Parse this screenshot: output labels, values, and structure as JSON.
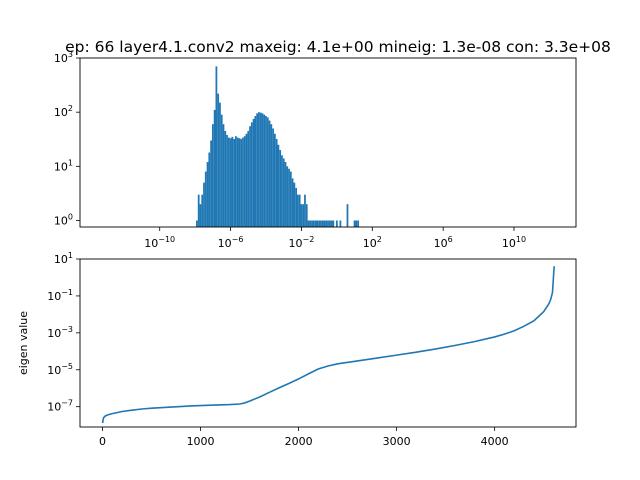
{
  "title": "ep: 66 layer4.1.conv2 maxeig: 4.1e+00 mineig: 1.3e-08 con: 3.3e+08",
  "colors": {
    "series": "#1f77b4",
    "axes": "#000000",
    "background": "#ffffff"
  },
  "chart_data": [
    {
      "type": "bar",
      "subtype": "histogram",
      "xscale": "log",
      "yscale": "log",
      "xlim_log10": [
        -14.5,
        13.5
      ],
      "ylim_log10": [
        -0.12,
        3
      ],
      "xticks": [
        {
          "base": "10",
          "exp": "−10",
          "log10": -10
        },
        {
          "base": "10",
          "exp": "−6",
          "log10": -6
        },
        {
          "base": "10",
          "exp": "−2",
          "log10": -2
        },
        {
          "base": "10",
          "exp": "2",
          "log10": 2
        },
        {
          "base": "10",
          "exp": "6",
          "log10": 6
        },
        {
          "base": "10",
          "exp": "10",
          "log10": 10
        }
      ],
      "yticks": [
        {
          "base": "10",
          "exp": "0",
          "log10": 0
        },
        {
          "base": "10",
          "exp": "1",
          "log10": 1
        },
        {
          "base": "10",
          "exp": "2",
          "log10": 2
        },
        {
          "base": "10",
          "exp": "3",
          "log10": 3
        }
      ],
      "bin_log10_x": [
        -7.9,
        -7.8,
        -7.7,
        -7.6,
        -7.5,
        -7.4,
        -7.3,
        -7.2,
        -7.1,
        -7.0,
        -6.9,
        -6.8,
        -6.7,
        -6.6,
        -6.5,
        -6.4,
        -6.3,
        -6.2,
        -6.1,
        -6.0,
        -5.9,
        -5.8,
        -5.7,
        -5.6,
        -5.5,
        -5.4,
        -5.3,
        -5.2,
        -5.1,
        -5.0,
        -4.9,
        -4.8,
        -4.7,
        -4.6,
        -4.5,
        -4.4,
        -4.3,
        -4.2,
        -4.1,
        -4.0,
        -3.9,
        -3.8,
        -3.7,
        -3.6,
        -3.5,
        -3.4,
        -3.3,
        -3.2,
        -3.1,
        -3.0,
        -2.9,
        -2.8,
        -2.7,
        -2.6,
        -2.5,
        -2.4,
        -2.3,
        -2.2,
        -2.1,
        -2.0,
        -1.9,
        -1.8,
        -1.7,
        -1.6,
        -1.5,
        -1.4,
        -1.3,
        -1.2,
        -1.1,
        -1.0,
        -0.9,
        -0.8,
        -0.7,
        -0.6,
        -0.5,
        -0.4,
        -0.3,
        -0.2,
        0.0,
        0.2,
        0.6,
        1.0,
        1.1,
        1.2
      ],
      "counts": [
        1,
        3,
        2,
        3,
        5,
        8,
        12,
        18,
        30,
        60,
        110,
        700,
        220,
        150,
        90,
        60,
        45,
        38,
        34,
        33,
        35,
        32,
        36,
        34,
        33,
        32,
        34,
        36,
        40,
        45,
        55,
        65,
        75,
        85,
        95,
        100,
        98,
        95,
        90,
        85,
        80,
        70,
        60,
        50,
        40,
        32,
        25,
        20,
        16,
        14,
        12,
        10,
        9,
        8,
        6,
        5,
        4,
        3,
        3,
        2,
        2,
        3,
        2,
        1,
        1,
        1,
        1,
        1,
        1,
        1,
        1,
        1,
        1,
        1,
        1,
        1,
        1,
        1,
        1,
        1,
        2,
        1,
        1,
        1
      ]
    },
    {
      "type": "line",
      "yscale": "log",
      "ylabel": "eigen value",
      "xlim": [
        -230,
        4830
      ],
      "ylim_log10": [
        -8.1,
        1
      ],
      "xticks": [
        0,
        1000,
        2000,
        3000,
        4000
      ],
      "yticks": [
        {
          "base": "10",
          "exp": "−7",
          "log10": -7
        },
        {
          "base": "10",
          "exp": "−5",
          "log10": -5
        },
        {
          "base": "10",
          "exp": "−3",
          "log10": -3
        },
        {
          "base": "10",
          "exp": "−1",
          "log10": -1
        },
        {
          "base": "10",
          "exp": "1",
          "log10": 1
        }
      ],
      "x": [
        0,
        10,
        30,
        60,
        100,
        200,
        300,
        400,
        500,
        700,
        900,
        1100,
        1300,
        1400,
        1450,
        1500,
        1600,
        1700,
        1800,
        1900,
        2000,
        2100,
        2200,
        2300,
        2400,
        2600,
        2800,
        3000,
        3200,
        3400,
        3600,
        3800,
        4000,
        4100,
        4200,
        4300,
        4400,
        4500,
        4550,
        4570,
        4590,
        4600,
        4605,
        4608
      ],
      "y": [
        1.3e-08,
        2.5e-08,
        3.2e-08,
        3.7e-08,
        4.2e-08,
        5.5e-08,
        6.5e-08,
        7.5e-08,
        8.3e-08,
        9.5e-08,
        1.1e-07,
        1.2e-07,
        1.3e-07,
        1.4e-07,
        1.6e-07,
        2e-07,
        3.3e-07,
        5.9e-07,
        1.05e-06,
        1.8e-06,
        3.2e-06,
        6e-06,
        1.1e-05,
        1.6e-05,
        2.1e-05,
        3e-05,
        4.3e-05,
        6.2e-05,
        9e-05,
        0.000135,
        0.00021,
        0.00034,
        0.0006,
        0.00085,
        0.0013,
        0.0023,
        0.0045,
        0.014,
        0.035,
        0.06,
        0.15,
        1.0,
        2.8,
        4.1
      ]
    }
  ]
}
